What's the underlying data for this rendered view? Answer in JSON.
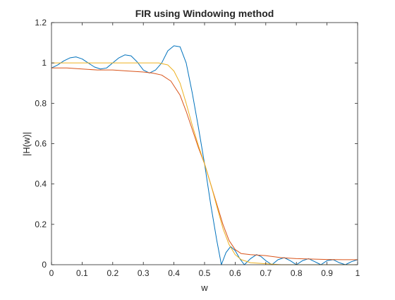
{
  "chart_data": {
    "type": "line",
    "title": "FIR using Windowing method",
    "xlabel": "w",
    "ylabel": "|H(w)|",
    "xlim": [
      0,
      1
    ],
    "ylim": [
      0,
      1.2
    ],
    "xticks": [
      0,
      0.1,
      0.2,
      0.3,
      0.4,
      0.5,
      0.6,
      0.7,
      0.8,
      0.9,
      1
    ],
    "xtick_labels": [
      "0",
      "0.1",
      "0.2",
      "0.3",
      "0.4",
      "0.5",
      "0.6",
      "0.7",
      "0.8",
      "0.9",
      "1"
    ],
    "yticks": [
      0,
      0.2,
      0.4,
      0.6,
      0.8,
      1,
      1.2
    ],
    "ytick_labels": [
      "0",
      "0.2",
      "0.4",
      "0.6",
      "0.8",
      "1",
      "1.2"
    ],
    "grid": false,
    "series": [
      {
        "color": "#0072BD",
        "x": [
          0,
          0.02,
          0.04,
          0.06,
          0.08,
          0.1,
          0.12,
          0.14,
          0.16,
          0.18,
          0.2,
          0.22,
          0.24,
          0.26,
          0.28,
          0.3,
          0.32,
          0.34,
          0.36,
          0.38,
          0.4,
          0.42,
          0.44,
          0.46,
          0.48,
          0.5,
          0.52,
          0.54,
          0.555,
          0.57,
          0.585,
          0.6,
          0.615,
          0.63,
          0.65,
          0.67,
          0.685,
          0.7,
          0.72,
          0.74,
          0.76,
          0.78,
          0.8,
          0.82,
          0.84,
          0.86,
          0.88,
          0.9,
          0.92,
          0.94,
          0.96,
          0.98,
          1.0
        ],
        "y": [
          0.975,
          0.99,
          1.01,
          1.025,
          1.03,
          1.02,
          1.0,
          0.98,
          0.97,
          0.975,
          1.0,
          1.025,
          1.04,
          1.035,
          1.005,
          0.965,
          0.95,
          0.965,
          1.0,
          1.06,
          1.085,
          1.08,
          1.0,
          0.85,
          0.68,
          0.5,
          0.3,
          0.12,
          0.0,
          0.06,
          0.09,
          0.07,
          0.03,
          0.0,
          0.03,
          0.05,
          0.04,
          0.02,
          0.0,
          0.025,
          0.035,
          0.02,
          0.0,
          0.02,
          0.03,
          0.015,
          0.0,
          0.02,
          0.025,
          0.01,
          0.0,
          0.015,
          0.025
        ]
      },
      {
        "color": "#D95319",
        "x": [
          0,
          0.05,
          0.1,
          0.15,
          0.2,
          0.25,
          0.3,
          0.33,
          0.36,
          0.39,
          0.42,
          0.44,
          0.46,
          0.48,
          0.5,
          0.52,
          0.54,
          0.56,
          0.58,
          0.6,
          0.62,
          0.65,
          0.7,
          0.75,
          0.8,
          0.85,
          0.9,
          0.95,
          1.0
        ],
        "y": [
          0.975,
          0.975,
          0.97,
          0.965,
          0.965,
          0.96,
          0.955,
          0.95,
          0.94,
          0.91,
          0.84,
          0.76,
          0.67,
          0.58,
          0.5,
          0.4,
          0.3,
          0.2,
          0.12,
          0.075,
          0.055,
          0.05,
          0.045,
          0.035,
          0.03,
          0.028,
          0.026,
          0.025,
          0.025
        ]
      },
      {
        "color": "#EDB120",
        "x": [
          0,
          0.05,
          0.1,
          0.15,
          0.2,
          0.25,
          0.3,
          0.35,
          0.38,
          0.4,
          0.42,
          0.44,
          0.46,
          0.48,
          0.5,
          0.52,
          0.54,
          0.56,
          0.58,
          0.6,
          0.62,
          0.65,
          0.7,
          0.75,
          0.8,
          0.85,
          0.9,
          0.95,
          1.0
        ],
        "y": [
          1.0,
          1.0,
          1.0,
          1.0,
          1.0,
          1.0,
          1.0,
          1.0,
          0.99,
          0.96,
          0.9,
          0.8,
          0.69,
          0.59,
          0.5,
          0.4,
          0.29,
          0.18,
          0.1,
          0.05,
          0.025,
          0.01,
          0.005,
          0.0,
          0.0,
          0.0,
          0.0,
          0.0,
          0.0
        ]
      }
    ]
  }
}
